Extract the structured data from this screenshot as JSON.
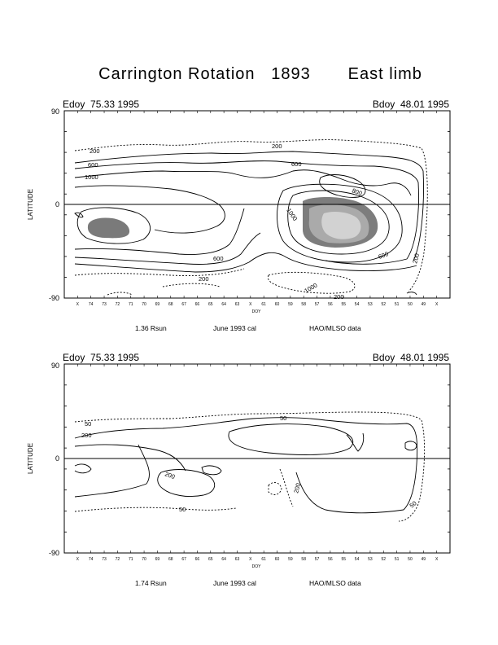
{
  "figure": {
    "title": "Carrington Rotation   1893       East limb"
  },
  "chart_data": [
    {
      "type": "contour",
      "left_header": "Edoy  75.33 1995",
      "right_header": "Bdoy  48.01 1995",
      "ylabel": "LATITUDE",
      "ylim": [
        -90,
        90
      ],
      "yticks": [
        "90",
        "0",
        "-90"
      ],
      "xlabel": "DOY",
      "xticks": [
        "X",
        "74",
        "73",
        "72",
        "71",
        "70",
        "69",
        "68",
        "67",
        "66",
        "65",
        "64",
        "63",
        "X",
        "61",
        "60",
        "59",
        "58",
        "57",
        "56",
        "55",
        "54",
        "53",
        "52",
        "51",
        "50",
        "49",
        "X"
      ],
      "contour_labels": [
        "200",
        "200",
        "600",
        "600",
        "1000",
        "1000",
        "800",
        "200",
        "600",
        "600",
        "200",
        "1000",
        "200"
      ],
      "captions": [
        "1.36 Rsun",
        "June 1993 cal",
        "HAO/MLSO data"
      ]
    },
    {
      "type": "contour",
      "left_header": "Edoy  75.33 1995",
      "right_header": "Bdoy  48.01 1995",
      "ylabel": "LATITUDE",
      "ylim": [
        -90,
        90
      ],
      "yticks": [
        "90",
        "0",
        "-90"
      ],
      "xlabel": "DOY",
      "xticks": [
        "X",
        "74",
        "73",
        "72",
        "71",
        "70",
        "69",
        "68",
        "67",
        "66",
        "65",
        "64",
        "63",
        "X",
        "61",
        "60",
        "59",
        "58",
        "57",
        "56",
        "55",
        "54",
        "53",
        "52",
        "51",
        "50",
        "49",
        "X"
      ],
      "contour_labels": [
        "50",
        "200",
        "50",
        "200",
        "200",
        "50",
        "50"
      ],
      "captions": [
        "1.74 Rsun",
        "June 1993 cal",
        "HAO/MLSO data"
      ]
    }
  ]
}
